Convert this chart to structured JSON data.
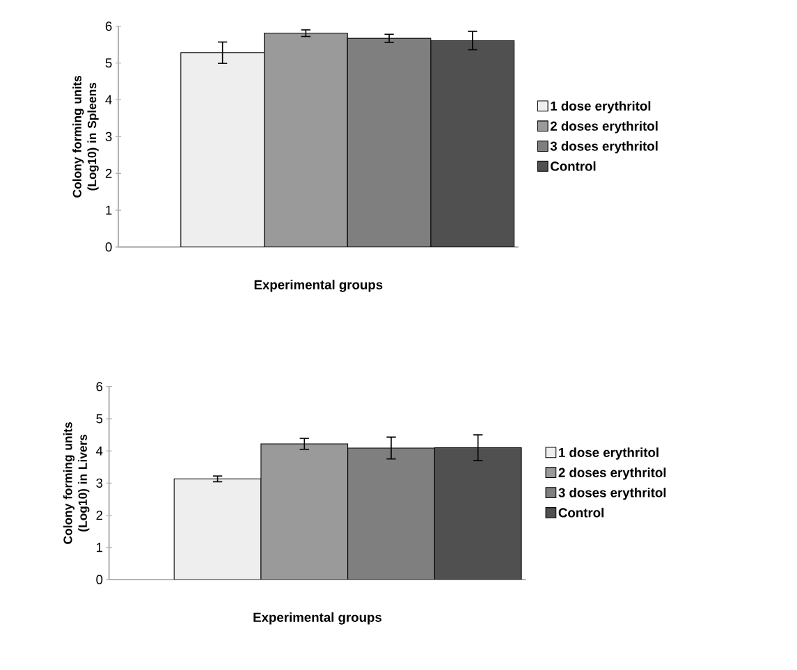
{
  "chart_data": [
    {
      "type": "bar",
      "xlabel": "Experimental groups",
      "ylabel": "Colony forming units (Log10) in Spleens",
      "categories": [
        null
      ],
      "ylim": [
        0,
        6
      ],
      "yticks": [
        0,
        1,
        2,
        3,
        4,
        5,
        6
      ],
      "legend": "right",
      "series": [
        {
          "name": "1 dose erythritol",
          "color": "#eeeeee",
          "values": [
            5.28
          ],
          "errors": [
            0.29
          ]
        },
        {
          "name": "2 doses erythritol",
          "color": "#9a9a9a",
          "values": [
            5.81
          ],
          "errors": [
            0.09
          ]
        },
        {
          "name": "3 doses erythritol",
          "color": "#7f7f7f",
          "values": [
            5.67
          ],
          "errors": [
            0.11
          ]
        },
        {
          "name": "Control",
          "color": "#505050",
          "values": [
            5.61
          ],
          "errors": [
            0.25
          ]
        }
      ]
    },
    {
      "type": "bar",
      "xlabel": "Experimental groups",
      "ylabel": "Colony forming units (Log10) in Livers",
      "categories": [
        null
      ],
      "ylim": [
        0,
        6
      ],
      "yticks": [
        0,
        1,
        2,
        3,
        4,
        5,
        6
      ],
      "legend": "right",
      "series": [
        {
          "name": "1 dose erythritol",
          "color": "#eeeeee",
          "values": [
            3.13
          ],
          "errors": [
            0.09
          ]
        },
        {
          "name": "2 doses erythritol",
          "color": "#9a9a9a",
          "values": [
            4.22
          ],
          "errors": [
            0.17
          ]
        },
        {
          "name": "3 doses erythritol",
          "color": "#7f7f7f",
          "values": [
            4.09
          ],
          "errors": [
            0.34
          ]
        },
        {
          "name": "Control",
          "color": "#505050",
          "values": [
            4.1
          ],
          "errors": [
            0.4
          ]
        }
      ]
    }
  ]
}
